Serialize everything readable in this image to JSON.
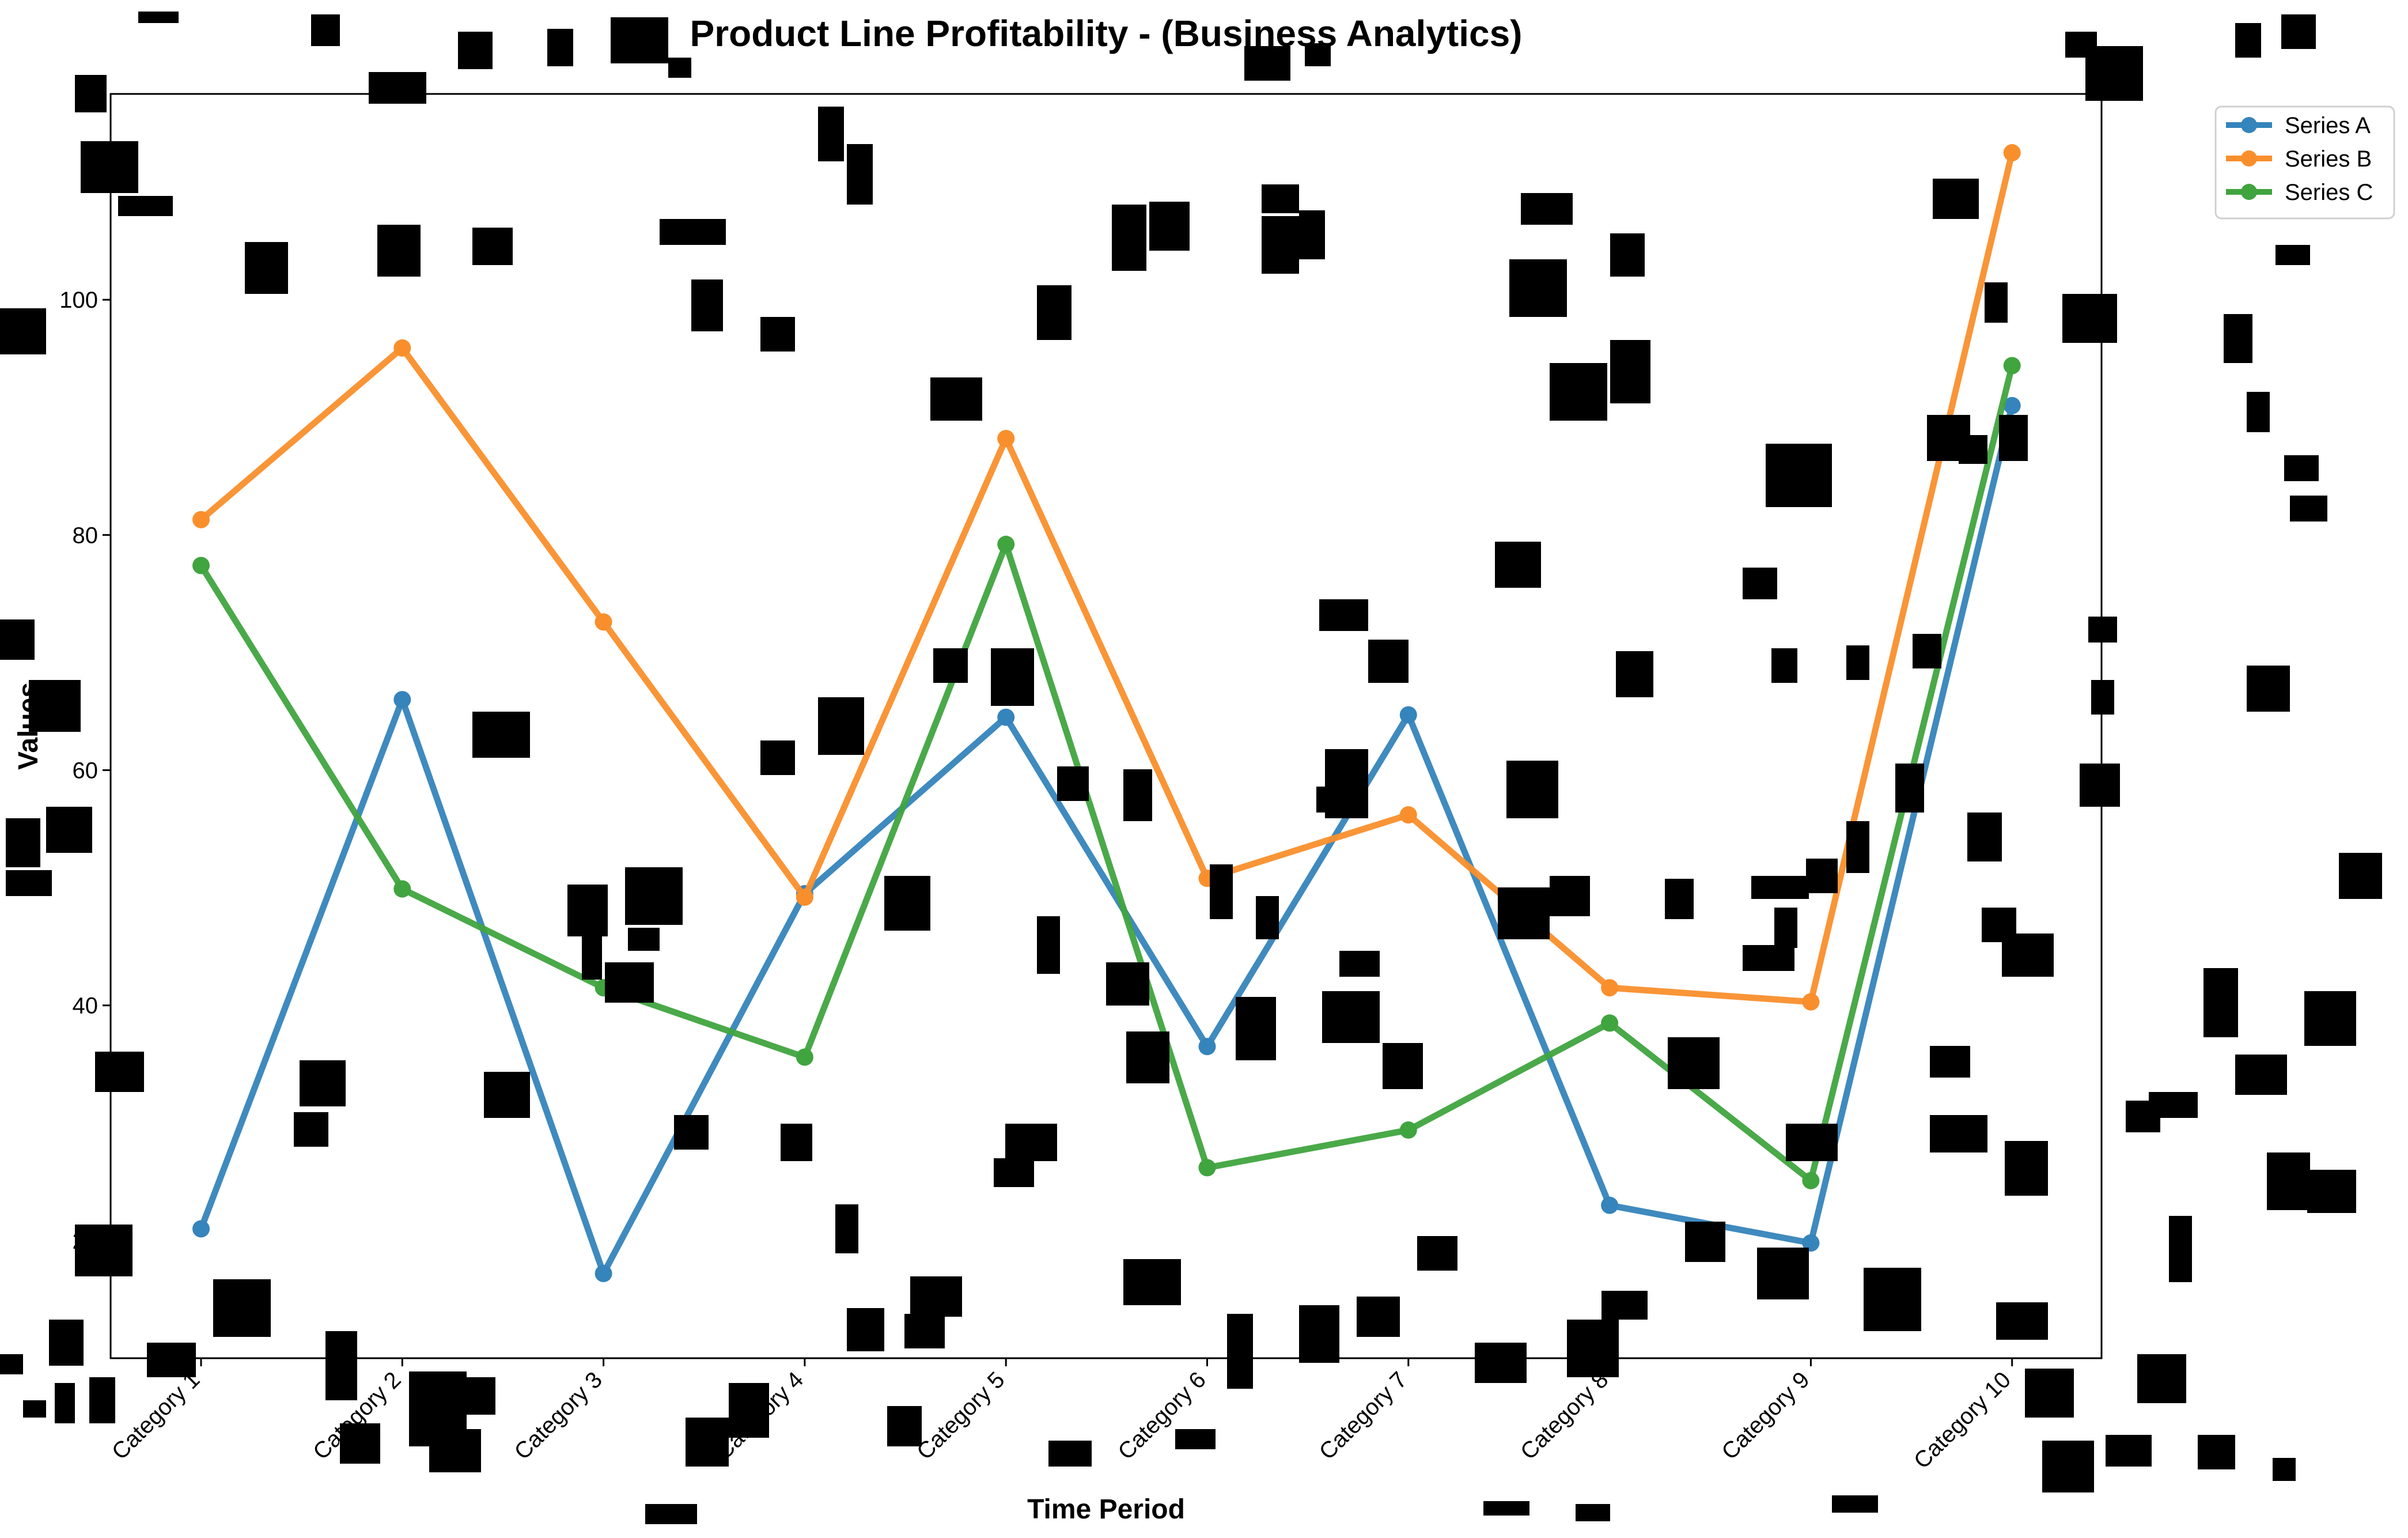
{
  "chart_data": {
    "type": "line",
    "title": "Product Line Profitability - (Business Analytics)",
    "xlabel": "Time Period",
    "ylabel": "Values",
    "categories": [
      "Category 1",
      "Category 2",
      "Category 3",
      "Category 4",
      "Category 5",
      "Category 6",
      "Category 7",
      "Category 8",
      "Category 9",
      "Category 10"
    ],
    "y_ticks": [
      "20",
      "40",
      "60",
      "80",
      "100"
    ],
    "ylim": [
      10,
      117.5
    ],
    "grid": false,
    "legend_position": "top-right",
    "series": [
      {
        "name": "Series A",
        "color": "#3584bb",
        "values": [
          21,
          66,
          17.2,
          49.5,
          64.5,
          36.5,
          64.7,
          23,
          19.8,
          91
        ]
      },
      {
        "name": "Series B",
        "color": "#f98f2c",
        "values": [
          81.3,
          95.9,
          72.6,
          49.2,
          88.2,
          50.8,
          56.2,
          41.5,
          40.3,
          112.5
        ]
      },
      {
        "name": "Series C",
        "color": "#40a43f",
        "values": [
          77.4,
          49.9,
          41.5,
          35.6,
          79.2,
          26.2,
          29.4,
          38.5,
          25.1,
          94.4
        ]
      }
    ]
  },
  "occlusion_color": "#000000"
}
